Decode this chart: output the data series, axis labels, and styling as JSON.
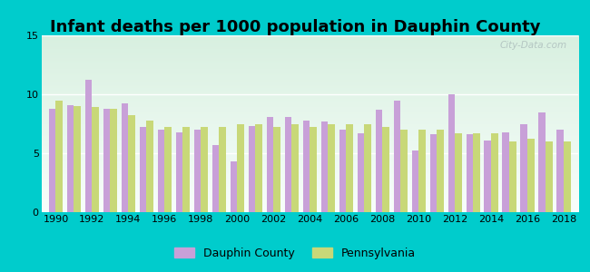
{
  "title": "Infant deaths per 1000 population in Dauphin County",
  "years": [
    1990,
    1991,
    1992,
    1993,
    1994,
    1995,
    1996,
    1997,
    1998,
    1999,
    2000,
    2001,
    2002,
    2003,
    2004,
    2005,
    2006,
    2007,
    2008,
    2009,
    2010,
    2011,
    2012,
    2013,
    2014,
    2015,
    2016,
    2017,
    2018
  ],
  "dauphin": [
    8.8,
    9.1,
    11.2,
    8.8,
    9.2,
    7.2,
    7.0,
    6.8,
    7.0,
    5.7,
    4.3,
    7.3,
    8.1,
    8.1,
    7.8,
    7.7,
    7.0,
    6.7,
    8.7,
    9.5,
    5.2,
    6.6,
    10.0,
    6.6,
    6.1,
    6.8,
    7.5,
    8.5,
    7.0
  ],
  "pennsylvania": [
    9.5,
    9.0,
    8.9,
    8.8,
    8.2,
    7.8,
    7.2,
    7.2,
    7.2,
    7.2,
    7.5,
    7.5,
    7.2,
    7.5,
    7.2,
    7.5,
    7.5,
    7.5,
    7.2,
    7.0,
    7.0,
    7.0,
    6.7,
    6.7,
    6.7,
    6.0,
    6.2,
    6.0,
    6.0
  ],
  "dauphin_color": "#c8a0d8",
  "pennsylvania_color": "#c8d878",
  "bg_outer": "#00cccc",
  "bg_plot": "#f0faf4",
  "ylim": [
    0,
    15
  ],
  "yticks": [
    0,
    5,
    10,
    15
  ],
  "legend_dauphin": "Dauphin County",
  "legend_pennsylvania": "Pennsylvania",
  "bar_width": 0.38,
  "title_fontsize": 13,
  "watermark": "City-Data.com"
}
